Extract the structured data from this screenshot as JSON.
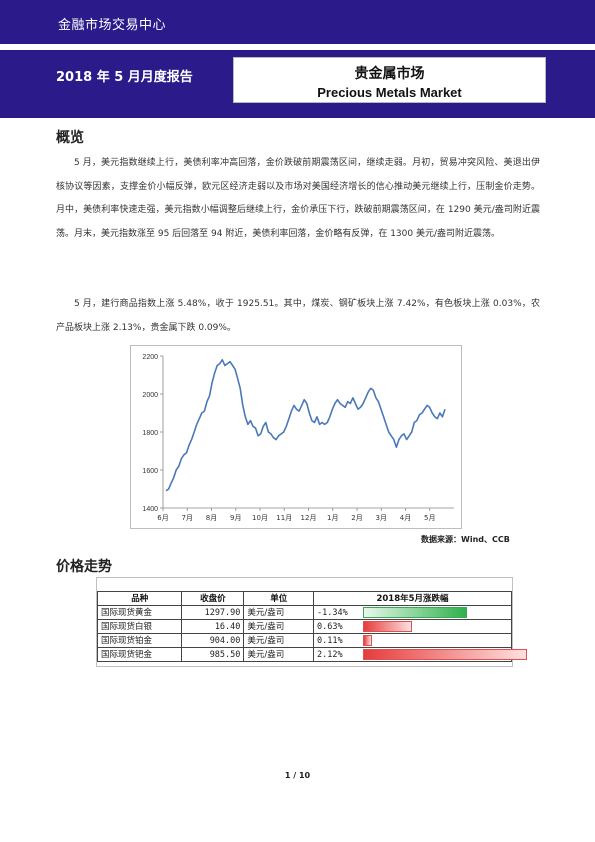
{
  "header": {
    "org": "金融市场交易中心",
    "report_date": "2018 年 5 月月度报告",
    "title_cn": "贵金属市场",
    "title_en": "Precious Metals Market"
  },
  "overview": {
    "heading": "概览",
    "para1": "5 月，美元指数继续上行，美债利率冲高回落，金价跌破前期震荡区间，继续走弱。月初，贸易冲突风险、美退出伊核协议等因素，支撑金价小幅反弹，欧元区经济走弱以及市场对美国经济增长的信心推动美元继续上行，压制金价走势。月中，美债利率快速走强，美元指数小幅调整后继续上行，金价承压下行，跌破前期震荡区间，在 1290 美元/盎司附近震荡。月末，美元指数涨至 95 后回落至 94 附近，美债利率回落，金价略有反弹，在 1300 美元/盎司附近震荡。",
    "para2": "5 月，建行商品指数上涨 5.48%，收于 1925.51。其中，煤炭、钢矿板块上涨 7.42%，有色板块上涨 0.03%，农产品板块上涨 2.13%，贵金属下跌 0.09%。"
  },
  "chart_data": {
    "type": "line",
    "x_labels": [
      "6月",
      "7月",
      "8月",
      "9月",
      "10月",
      "11月",
      "12月",
      "1月",
      "2月",
      "3月",
      "4月",
      "5月"
    ],
    "ylim": [
      1400,
      2200
    ],
    "y_ticks": [
      1400,
      1600,
      1800,
      2000,
      2200
    ],
    "grid": false,
    "series": [
      {
        "color": "#4a78b8",
        "values": [
          1490,
          1500,
          1530,
          1560,
          1600,
          1620,
          1660,
          1680,
          1690,
          1730,
          1760,
          1800,
          1840,
          1870,
          1900,
          1910,
          1960,
          1990,
          2060,
          2110,
          2150,
          2160,
          2180,
          2150,
          2160,
          2170,
          2150,
          2130,
          2080,
          2030,
          1940,
          1880,
          1840,
          1860,
          1830,
          1820,
          1780,
          1790,
          1830,
          1850,
          1800,
          1790,
          1770,
          1760,
          1780,
          1790,
          1800,
          1830,
          1870,
          1910,
          1940,
          1920,
          1910,
          1940,
          1970,
          1950,
          1900,
          1860,
          1850,
          1880,
          1840,
          1850,
          1840,
          1850,
          1880,
          1920,
          1950,
          1970,
          1950,
          1940,
          1930,
          1960,
          1950,
          1980,
          1950,
          1920,
          1930,
          1950,
          1980,
          2010,
          2030,
          2020,
          1980,
          1960,
          1920,
          1880,
          1840,
          1800,
          1780,
          1760,
          1720,
          1760,
          1780,
          1790,
          1760,
          1780,
          1800,
          1850,
          1860,
          1890,
          1900,
          1920,
          1940,
          1930,
          1900,
          1880,
          1870,
          1900,
          1880,
          1920
        ]
      }
    ]
  },
  "source_note": "数据来源：Wind、CCB",
  "price_section": {
    "heading": "价格走势",
    "columns": [
      "品种",
      "收盘价",
      "单位",
      "2018年5月涨跌幅"
    ],
    "rows": [
      {
        "name": "国际现货黄金",
        "price": "1297.90",
        "unit": "美元/盎司",
        "change": "-1.34%",
        "value": -1.34
      },
      {
        "name": "国际现货白银",
        "price": "16.40",
        "unit": "美元/盎司",
        "change": "0.63%",
        "value": 0.63
      },
      {
        "name": "国际现货铂金",
        "price": "904.00",
        "unit": "美元/盎司",
        "change": "0.11%",
        "value": 0.11
      },
      {
        "name": "国际现货钯金",
        "price": "985.50",
        "unit": "美元/盎司",
        "change": "2.12%",
        "value": 2.12
      }
    ]
  },
  "page_number": "1 / 10"
}
